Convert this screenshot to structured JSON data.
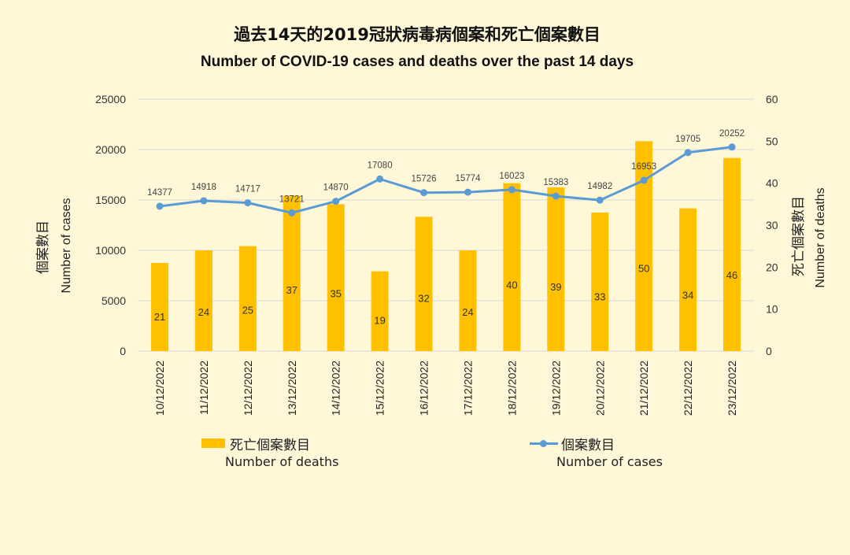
{
  "title_zh": "過去14天的2019冠狀病毒病個案和死亡個案數目",
  "title_en": "Number of COVID-19 cases and deaths over the past 14 days",
  "legend": {
    "deaths_zh": "死亡個案數目",
    "deaths_en": "Number of deaths",
    "cases_zh": "個案數目",
    "cases_en": "Number of cases"
  },
  "colors": {
    "bar": "#FFC000",
    "line": "#5B9BD5",
    "grid": "#D9D9D9",
    "background": "#FEF7D8"
  },
  "chart_data": {
    "type": "bar+line",
    "categories": [
      "10/12/2022",
      "11/12/2022",
      "12/12/2022",
      "13/12/2022",
      "14/12/2022",
      "15/12/2022",
      "16/12/2022",
      "17/12/2022",
      "18/12/2022",
      "19/12/2022",
      "20/12/2022",
      "21/12/2022",
      "22/12/2022",
      "23/12/2022"
    ],
    "series": [
      {
        "name": "死亡個案數目 Number of deaths",
        "kind": "bar",
        "axis": "right",
        "values": [
          21,
          24,
          25,
          37,
          35,
          19,
          32,
          24,
          40,
          39,
          33,
          50,
          34,
          46
        ]
      },
      {
        "name": "個案數目 Number of cases",
        "kind": "line",
        "axis": "left",
        "values": [
          14377,
          14918,
          14717,
          13721,
          14870,
          17080,
          15726,
          15774,
          16023,
          15383,
          14982,
          16953,
          19705,
          20252
        ]
      }
    ],
    "y_left": {
      "label_zh": "個案數目",
      "label_en": "Number of cases",
      "lim": [
        0,
        25000
      ],
      "ticks": [
        "0",
        "5000",
        "10000",
        "15000",
        "20000",
        "25000"
      ]
    },
    "y_right": {
      "label_zh": "死亡個案數目",
      "label_en": "Number of deaths",
      "lim": [
        0,
        60
      ],
      "ticks": [
        "0",
        "10",
        "20",
        "30",
        "40",
        "50",
        "60"
      ]
    },
    "grid": true,
    "legend_position": "bottom"
  }
}
